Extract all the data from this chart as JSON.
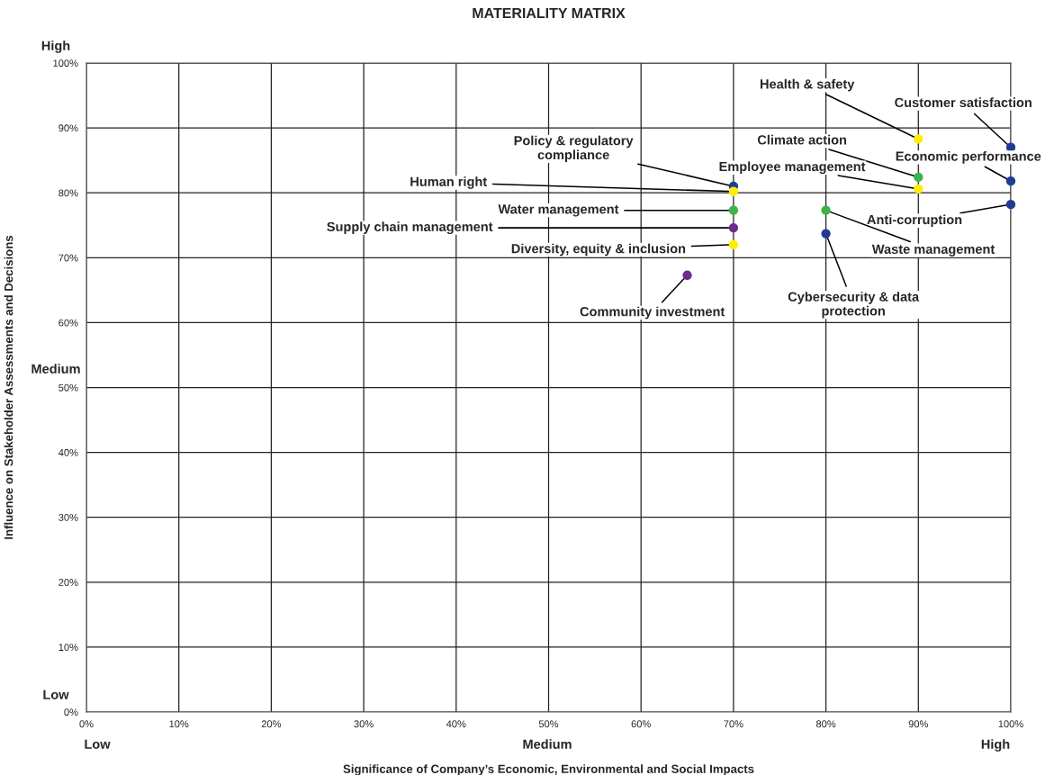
{
  "chart_data": {
    "type": "scatter",
    "title": "MATERIALITY MATRIX",
    "xlabel": "Significance of Company’s Economic, Environmental and Social Impacts",
    "ylabel": "Influence on Stakeholder Assessments and Decisions",
    "x": [
      90,
      100,
      90,
      90,
      100,
      100,
      70,
      70,
      70,
      70,
      70,
      65,
      80,
      80
    ],
    "values": [
      88.3,
      87.0,
      82.4,
      80.6,
      81.8,
      78.2,
      81.0,
      80.2,
      77.3,
      74.6,
      72.0,
      67.3,
      77.3,
      73.7
    ],
    "colors": [
      "#ffee00",
      "#1f3c94",
      "#3cb44b",
      "#ffee00",
      "#1f3c94",
      "#1f3c94",
      "#1f3c94",
      "#ffee00",
      "#3cb44b",
      "#6a2c91",
      "#ffee00",
      "#6a2c91",
      "#3cb44b",
      "#1f3c94"
    ],
    "marker": "circle",
    "xlim": [
      0,
      100
    ],
    "ylim": [
      0,
      100
    ],
    "xticks": [
      {
        "value": 0,
        "label": "0%"
      },
      {
        "value": 10,
        "label": "10%"
      },
      {
        "value": 20,
        "label": "20%"
      },
      {
        "value": 30,
        "label": "30%"
      },
      {
        "value": 40,
        "label": "40%"
      },
      {
        "value": 50,
        "label": "50%"
      },
      {
        "value": 60,
        "label": "60%"
      },
      {
        "value": 70,
        "label": "70%"
      },
      {
        "value": 80,
        "label": "80%"
      },
      {
        "value": 90,
        "label": "90%"
      },
      {
        "value": 100,
        "label": "100%"
      }
    ],
    "yticks": [
      {
        "value": 0,
        "label": "0%"
      },
      {
        "value": 10,
        "label": "10%"
      },
      {
        "value": 20,
        "label": "20%"
      },
      {
        "value": 30,
        "label": "30%"
      },
      {
        "value": 40,
        "label": "40%"
      },
      {
        "value": 50,
        "label": "50%"
      },
      {
        "value": 60,
        "label": "60%"
      },
      {
        "value": 70,
        "label": "70%"
      },
      {
        "value": 80,
        "label": "80%"
      },
      {
        "value": 90,
        "label": "90%"
      },
      {
        "value": 100,
        "label": "100%"
      }
    ],
    "grid": true,
    "annotations": [
      {
        "text": "Health & safety",
        "x": 90,
        "y": 88.3
      },
      {
        "text": "Customer satisfaction",
        "x": 100,
        "y": 87.0
      },
      {
        "text": "Climate action",
        "x": 90,
        "y": 82.4
      },
      {
        "text": "Employee management",
        "x": 90,
        "y": 80.6
      },
      {
        "text": "Economic performance",
        "x": 100,
        "y": 81.8
      },
      {
        "text": "Anti-corruption",
        "x": 100,
        "y": 78.2
      },
      {
        "text": "Policy & regulatory\ncompliance",
        "x": 70,
        "y": 81.0
      },
      {
        "text": "Human right",
        "x": 70,
        "y": 80.2
      },
      {
        "text": "Water management",
        "x": 70,
        "y": 77.3
      },
      {
        "text": "Supply chain management",
        "x": 70,
        "y": 74.6
      },
      {
        "text": "Diversity, equity & inclusion",
        "x": 70,
        "y": 72.0
      },
      {
        "text": "Community investment",
        "x": 65,
        "y": 67.3
      },
      {
        "text": "Waste management",
        "x": 80,
        "y": 77.3
      },
      {
        "text": "Cybersecurity & data\nprotection",
        "x": 80,
        "y": 73.7
      },
      "Low",
      "Medium",
      "High",
      "Low",
      "Medium",
      "High"
    ]
  }
}
